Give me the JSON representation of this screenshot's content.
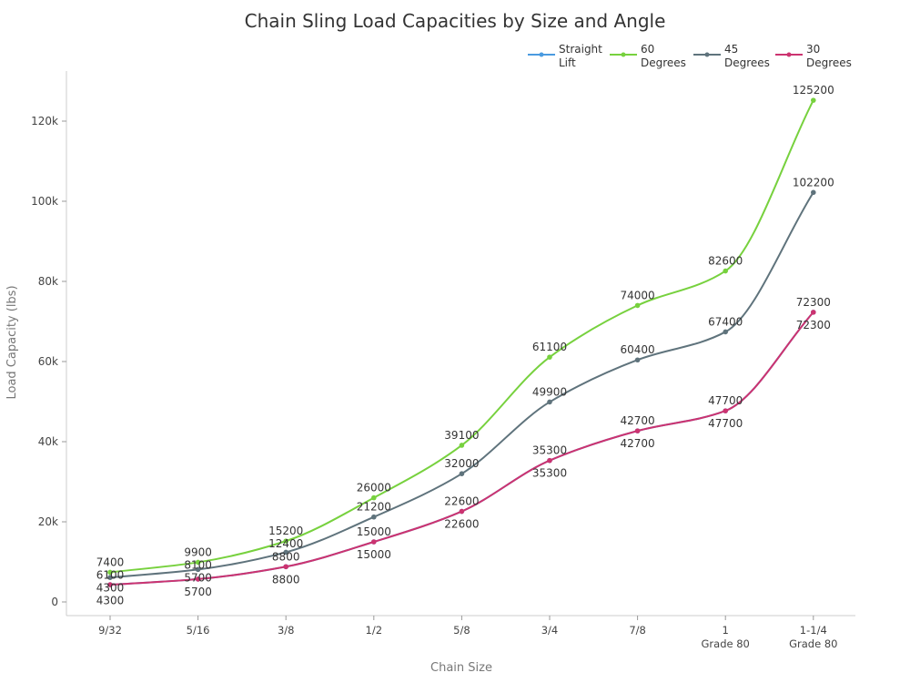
{
  "chart_data": {
    "type": "line",
    "title": "Chain Sling Load Capacities by Size and Angle",
    "xlabel": "Chain Size",
    "ylabel": "Load Capacity (lbs)",
    "ylim": [
      -3000,
      133000
    ],
    "yticks": [
      0,
      20000,
      40000,
      60000,
      80000,
      100000,
      120000
    ],
    "ytick_labels": [
      "0",
      "20k",
      "40k",
      "60k",
      "80k",
      "100k",
      "120k"
    ],
    "categories": [
      [
        "9/32"
      ],
      [
        "5/16"
      ],
      [
        "3/8"
      ],
      [
        "1/2"
      ],
      [
        "5/8"
      ],
      [
        "3/4"
      ],
      [
        "7/8"
      ],
      [
        "1",
        "Grade 80"
      ],
      [
        "1-1/4",
        "Grade 80"
      ]
    ],
    "legend_position": "top-right",
    "series": [
      {
        "name": [
          "Straight",
          "Lift"
        ],
        "color": "#4a9be0",
        "values": [
          4300,
          5700,
          8800,
          15000,
          22600,
          35300,
          42700,
          47700,
          72300
        ]
      },
      {
        "name": [
          "60",
          "Degrees"
        ],
        "color": "#77d13e",
        "values": [
          7400,
          9900,
          15200,
          26000,
          39100,
          61100,
          74000,
          82600,
          125200
        ]
      },
      {
        "name": [
          "45",
          "Degrees"
        ],
        "color": "#5f737c",
        "values": [
          6100,
          8100,
          12400,
          21200,
          32000,
          49900,
          60400,
          67400,
          102200
        ]
      },
      {
        "name": [
          "30",
          "Degrees"
        ],
        "color": "#cc3370",
        "values": [
          4300,
          5700,
          8800,
          15000,
          22600,
          35300,
          42700,
          47700,
          72300
        ]
      }
    ]
  }
}
